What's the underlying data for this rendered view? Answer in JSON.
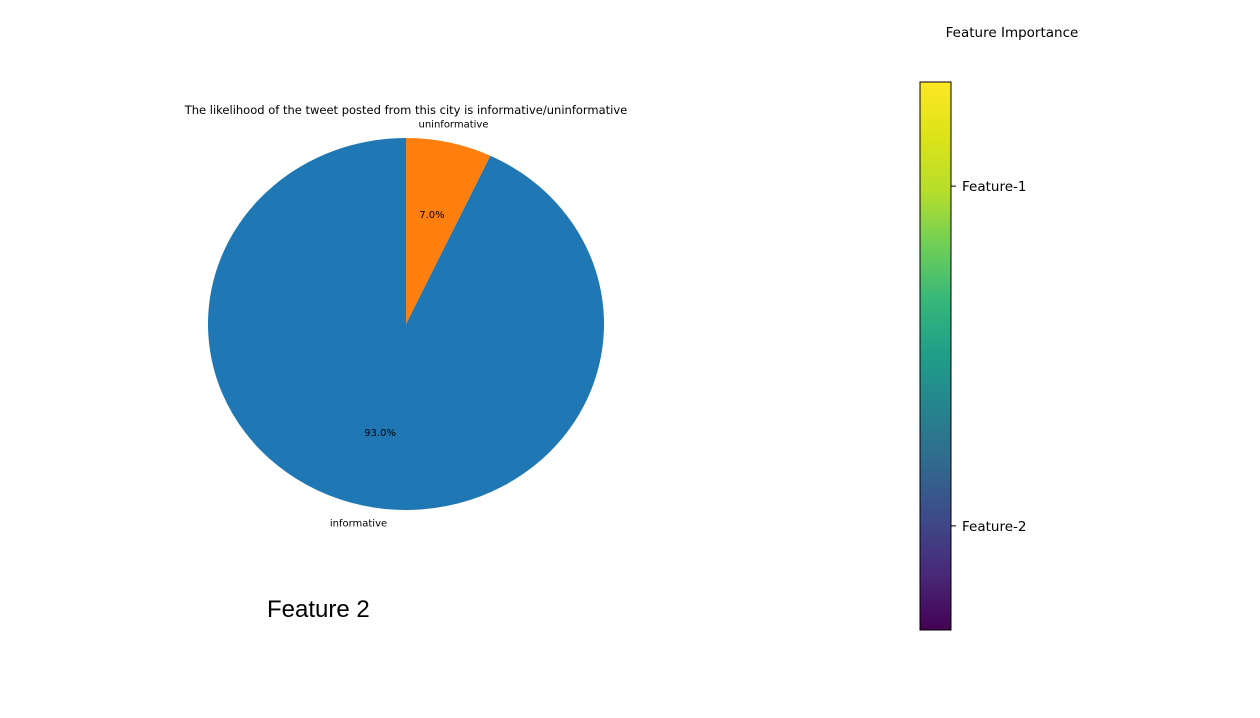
{
  "chart_data": [
    {
      "type": "pie",
      "title": "The likelihood of the tweet posted from this city is informative/uninformative",
      "categories": [
        "informative",
        "uninformative"
      ],
      "values": [
        93.0,
        7.0
      ],
      "value_labels": [
        "93.0%",
        "7.0%"
      ],
      "colors": [
        "#1f77b4",
        "#ff7f0e"
      ],
      "start_angle_deg": 90,
      "direction": "counterclockwise"
    },
    {
      "type": "colorbar",
      "title": "Feature Importance",
      "colormap": "viridis",
      "ticks": [
        {
          "label": "Feature-1",
          "fraction": 0.81
        },
        {
          "label": "Feature-2",
          "fraction": 0.19
        }
      ]
    }
  ],
  "caption": "Feature 2"
}
